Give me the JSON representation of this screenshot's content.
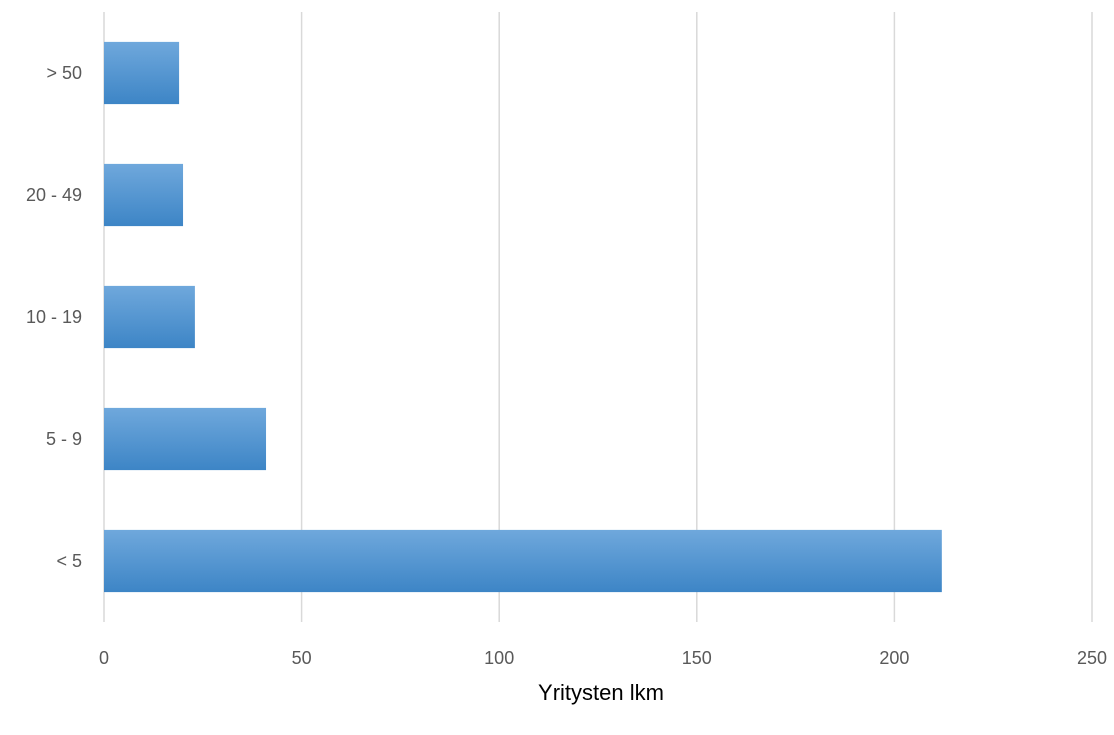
{
  "chart_data": {
    "type": "bar",
    "orientation": "horizontal",
    "categories": [
      "< 5",
      "5 - 9",
      "10 - 19",
      "20 - 49",
      "> 50"
    ],
    "values": [
      212,
      41,
      23,
      20,
      19
    ],
    "title": "",
    "xlabel": "Yritysten lkm",
    "ylabel": "",
    "xlim": [
      0,
      250
    ],
    "xticks": [
      "0",
      "50",
      "100",
      "150",
      "200",
      "250"
    ],
    "grid": "vertical",
    "legend": "none",
    "colors": {
      "bar_top": "#6fa8dc",
      "bar_bottom": "#3d85c6",
      "grid": "#d9d9d9",
      "tick_text": "#595959"
    }
  }
}
